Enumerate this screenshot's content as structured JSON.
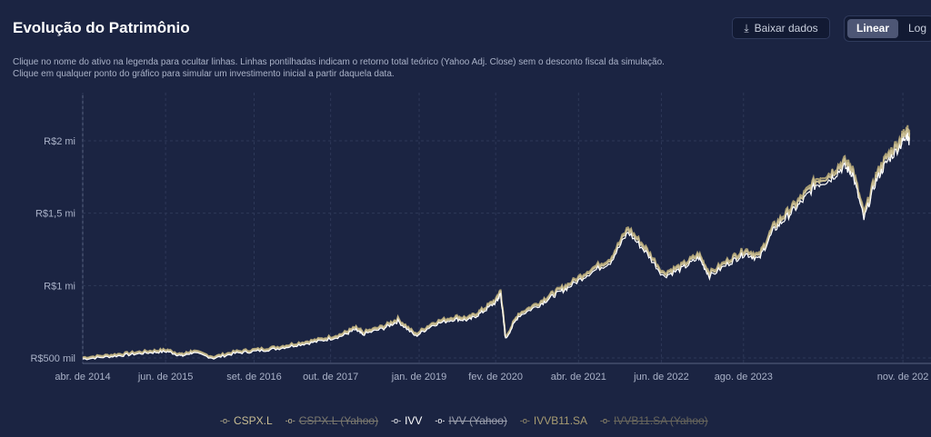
{
  "header": {
    "title": "Evolução do Patrimônio",
    "download_label": "Baixar dados",
    "scale_linear": "Linear",
    "scale_log": "Log",
    "subtitle_1": "Clique no nome do ativo na legenda para ocultar linhas. Linhas pontilhadas indicam o retorno total teórico (Yahoo Adj. Close) sem o desconto fiscal da simulação.",
    "subtitle_2": "Clique em qualquer ponto do gráfico para simular um investimento inicial a partir daquela data."
  },
  "chart_data": {
    "type": "line",
    "title": "Evolução do Patrimônio",
    "ylabel": "",
    "xlabel": "",
    "xlim": [
      2014.25,
      2025.92
    ],
    "ylim": [
      490,
      2150
    ],
    "x_ticks": [
      {
        "v": 2014.25,
        "label": "abr. de 2014"
      },
      {
        "v": 2015.42,
        "label": "jun. de 2015"
      },
      {
        "v": 2016.67,
        "label": "set. de 2016"
      },
      {
        "v": 2017.75,
        "label": "out. de 2017"
      },
      {
        "v": 2019.0,
        "label": "jan. de 2019"
      },
      {
        "v": 2020.08,
        "label": "fev. de 2020"
      },
      {
        "v": 2021.25,
        "label": "abr. de 2021"
      },
      {
        "v": 2022.42,
        "label": "jun. de 2022"
      },
      {
        "v": 2023.58,
        "label": "ago. de 2023"
      },
      {
        "v": 2025.83,
        "label": "nov. de 202"
      }
    ],
    "y_ticks": [
      {
        "v": 500,
        "label": "R$500 mil"
      },
      {
        "v": 1000,
        "label": "R$1 mi"
      },
      {
        "v": 1500,
        "label": "R$1,5 mi"
      },
      {
        "v": 2000,
        "label": "R$2 mi"
      }
    ],
    "points": [
      [
        2014.25,
        500
      ],
      [
        2014.6,
        515
      ],
      [
        2014.9,
        530
      ],
      [
        2015.2,
        545
      ],
      [
        2015.45,
        552
      ],
      [
        2015.65,
        520
      ],
      [
        2015.8,
        545
      ],
      [
        2016.1,
        505
      ],
      [
        2016.4,
        540
      ],
      [
        2016.7,
        555
      ],
      [
        2017.0,
        572
      ],
      [
        2017.3,
        600
      ],
      [
        2017.6,
        625
      ],
      [
        2017.9,
        660
      ],
      [
        2018.1,
        705
      ],
      [
        2018.2,
        672
      ],
      [
        2018.5,
        715
      ],
      [
        2018.7,
        765
      ],
      [
        2018.95,
        660
      ],
      [
        2019.2,
        740
      ],
      [
        2019.5,
        780
      ],
      [
        2019.7,
        772
      ],
      [
        2019.9,
        830
      ],
      [
        2020.1,
        905
      ],
      [
        2020.15,
        960
      ],
      [
        2020.22,
        640
      ],
      [
        2020.4,
        800
      ],
      [
        2020.7,
        880
      ],
      [
        2020.9,
        945
      ],
      [
        2021.1,
        1000
      ],
      [
        2021.4,
        1100
      ],
      [
        2021.7,
        1180
      ],
      [
        2021.95,
        1390
      ],
      [
        2022.2,
        1250
      ],
      [
        2022.45,
        1080
      ],
      [
        2022.7,
        1130
      ],
      [
        2022.95,
        1210
      ],
      [
        2023.1,
        1080
      ],
      [
        2023.4,
        1180
      ],
      [
        2023.6,
        1240
      ],
      [
        2023.8,
        1200
      ],
      [
        2024.0,
        1400
      ],
      [
        2024.2,
        1500
      ],
      [
        2024.4,
        1600
      ],
      [
        2024.6,
        1720
      ],
      [
        2024.8,
        1760
      ],
      [
        2025.0,
        1850
      ],
      [
        2025.12,
        1800
      ],
      [
        2025.28,
        1480
      ],
      [
        2025.45,
        1750
      ],
      [
        2025.6,
        1880
      ],
      [
        2025.8,
        2000
      ],
      [
        2025.88,
        2080
      ],
      [
        2025.92,
        2020
      ]
    ],
    "series": [
      {
        "name": "CSPX.L",
        "color": "#c9bd93",
        "factor": 1.0,
        "hidden": false
      },
      {
        "name": "CSPX.L (Yahoo)",
        "color": "#c9bd93",
        "factor": 1.02,
        "hidden": true
      },
      {
        "name": "IVV",
        "color": "#ffffff",
        "factor": 0.985,
        "hidden": false
      },
      {
        "name": "IVV (Yahoo)",
        "color": "#ffffff",
        "factor": 1.0,
        "hidden": true
      },
      {
        "name": "IVVB11.SA",
        "color": "#a89c72",
        "factor": 1.01,
        "hidden": false
      },
      {
        "name": "IVVB11.SA (Yahoo)",
        "color": "#a89c72",
        "factor": 1.03,
        "hidden": true
      }
    ],
    "legend_position": "bottom",
    "grid": true
  }
}
